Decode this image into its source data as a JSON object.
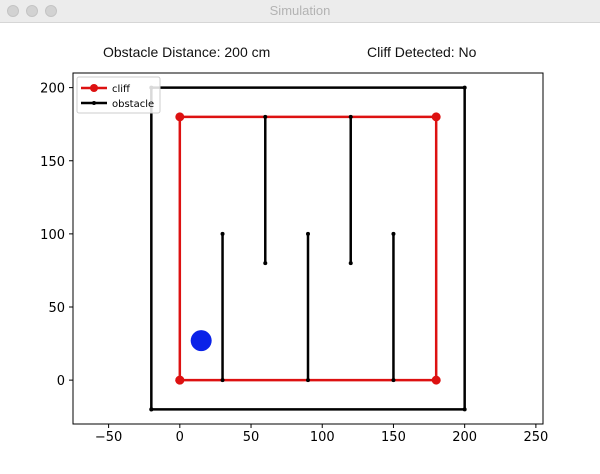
{
  "window": {
    "title": "Simulation"
  },
  "status": {
    "obstacle_distance": "Obstacle Distance: 200 cm",
    "cliff_detected": "Cliff Detected: No"
  },
  "chart_data": {
    "type": "line",
    "xlim": [
      -75,
      255
    ],
    "ylim": [
      -30,
      210
    ],
    "xticks": [
      -50,
      0,
      50,
      100,
      150,
      200,
      250
    ],
    "yticks": [
      0,
      50,
      100,
      150,
      200
    ],
    "legend": {
      "position": "top-left",
      "entries": [
        {
          "label": "cliff",
          "color": "#dd1111"
        },
        {
          "label": "obstacle",
          "color": "#000000"
        }
      ]
    },
    "series": [
      {
        "name": "cliff",
        "color": "#dd1111",
        "marker": "large-dot",
        "x": [
          0,
          180,
          180,
          0,
          0
        ],
        "y": [
          0,
          0,
          180,
          180,
          0
        ]
      },
      {
        "name": "obstacle-boundary",
        "color": "#000000",
        "marker": "small-dot",
        "x": [
          -20,
          200,
          200,
          -20,
          -20
        ],
        "y": [
          -20,
          -20,
          200,
          200,
          -20
        ]
      },
      {
        "name": "obstacle-wall-1",
        "color": "#000000",
        "marker": "small-dot",
        "x": [
          30,
          30
        ],
        "y": [
          0,
          100
        ]
      },
      {
        "name": "obstacle-wall-2",
        "color": "#000000",
        "marker": "small-dot",
        "x": [
          60,
          60
        ],
        "y": [
          80,
          180
        ]
      },
      {
        "name": "obstacle-wall-3",
        "color": "#000000",
        "marker": "small-dot",
        "x": [
          90,
          90
        ],
        "y": [
          0,
          100
        ]
      },
      {
        "name": "obstacle-wall-4",
        "color": "#000000",
        "marker": "small-dot",
        "x": [
          120,
          120
        ],
        "y": [
          80,
          180
        ]
      },
      {
        "name": "obstacle-wall-5",
        "color": "#000000",
        "marker": "small-dot",
        "x": [
          150,
          150
        ],
        "y": [
          0,
          100
        ]
      }
    ],
    "robot": {
      "x": 15,
      "y": 27,
      "color": "#0a22e8"
    }
  }
}
